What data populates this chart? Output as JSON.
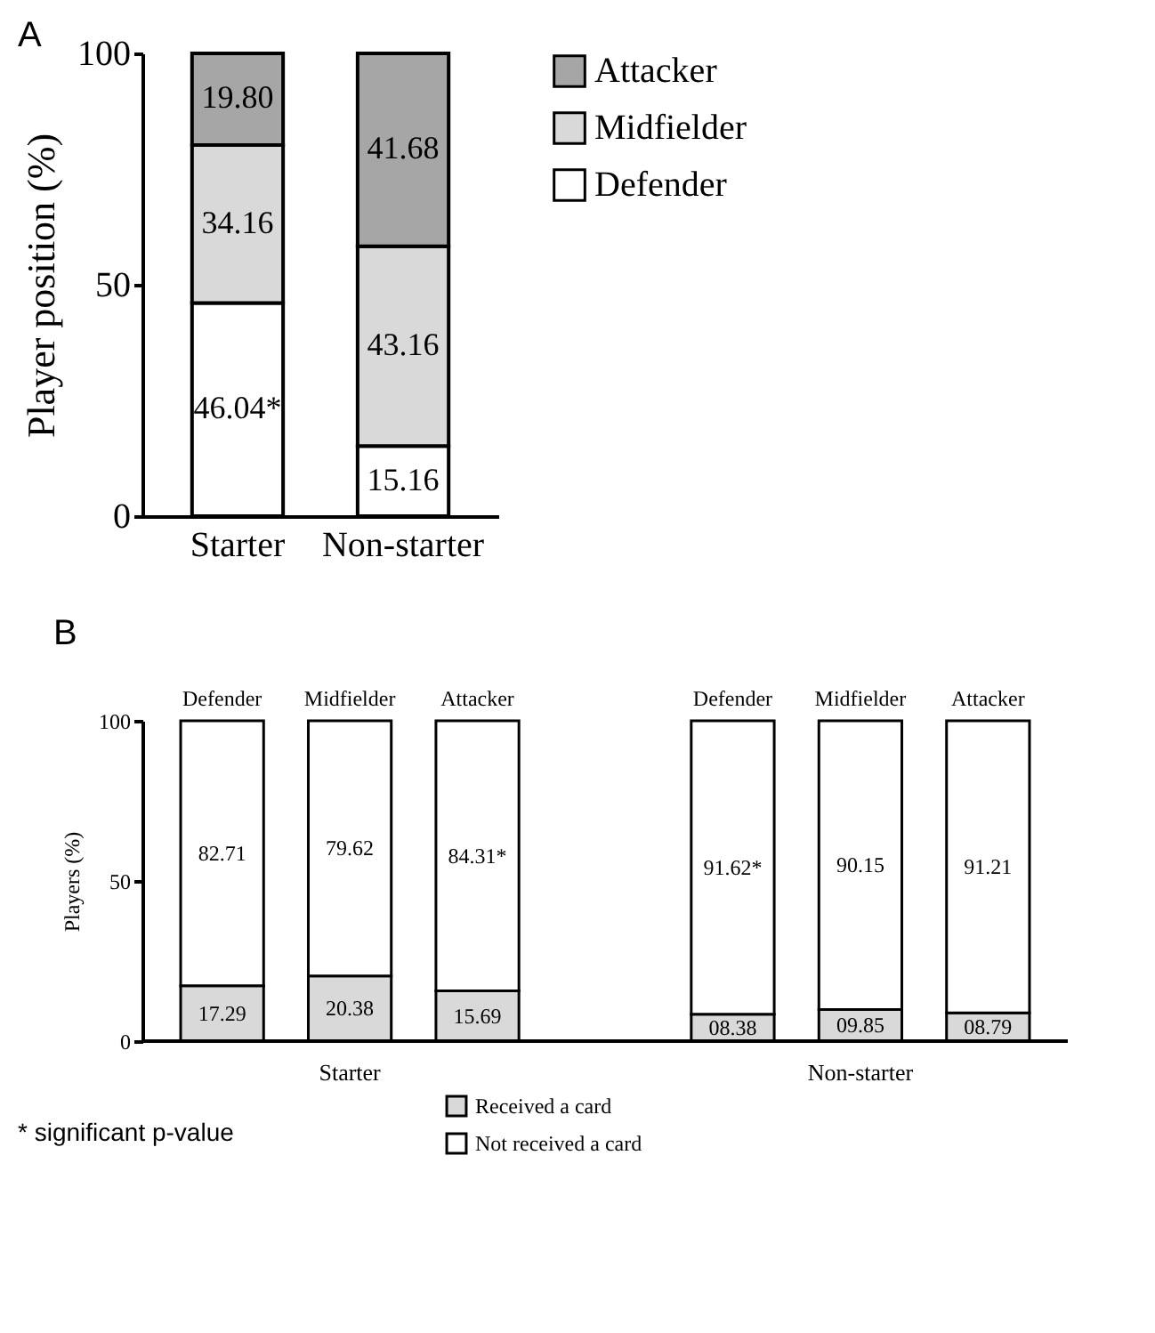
{
  "chart_data": [
    {
      "type": "bar",
      "title": "A",
      "stacked": true,
      "categories": [
        "Starter",
        "Non-starter"
      ],
      "ylabel": "Player position (%)",
      "ylim": [
        0,
        100
      ],
      "yticks": [
        0,
        50,
        100
      ],
      "legend": "right",
      "series": [
        {
          "name": "Defender",
          "color": "#ffffff",
          "values": [
            46.04,
            15.16
          ],
          "value_labels": [
            "46.04*",
            "15.16"
          ]
        },
        {
          "name": "Midfielder",
          "color": "#d9d9d9",
          "values": [
            34.16,
            43.16
          ],
          "value_labels": [
            "34.16",
            "43.16"
          ]
        },
        {
          "name": "Attacker",
          "color": "#a6a6a6",
          "values": [
            19.8,
            41.68
          ],
          "value_labels": [
            "19.80",
            "41.68"
          ]
        }
      ]
    },
    {
      "type": "bar",
      "title": "B",
      "stacked": true,
      "categories": [
        "Defender",
        "Midfielder",
        "Attacker",
        "Defender",
        "Midfielder",
        "Attacker"
      ],
      "ylabel": "Players (%)",
      "ylim": [
        0,
        100
      ],
      "yticks": [
        0,
        50,
        100
      ],
      "legend": "bottom",
      "annotations": [
        "Starter",
        "Non-starter",
        "* significant p-value"
      ],
      "series": [
        {
          "name": "Received a card",
          "color": "#d9d9d9",
          "values": [
            17.29,
            20.38,
            15.69,
            8.38,
            9.85,
            8.79
          ],
          "value_labels": [
            "17.29",
            "20.38",
            "15.69",
            "08.38",
            "09.85",
            "08.79"
          ]
        },
        {
          "name": "Not received a card",
          "color": "#ffffff",
          "values": [
            82.71,
            79.62,
            84.31,
            91.62,
            90.15,
            91.21
          ],
          "value_labels": [
            "82.71",
            "79.62",
            "84.31*",
            "91.62*",
            "90.15",
            "91.21"
          ]
        }
      ]
    }
  ]
}
